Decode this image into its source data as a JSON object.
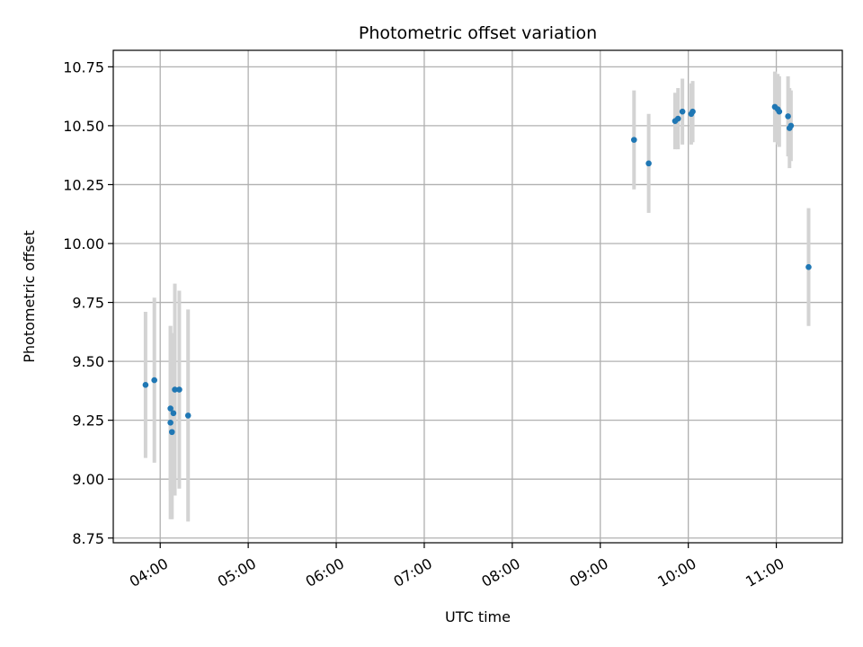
{
  "chart_data": {
    "type": "scatter",
    "title": "Photometric offset variation",
    "xlabel": "UTC time",
    "ylabel": "Photometric offset",
    "xlim": [
      "03:28",
      "11:45"
    ],
    "ylim": [
      8.73,
      10.82
    ],
    "x_ticks": [
      "04:00",
      "05:00",
      "06:00",
      "07:00",
      "08:00",
      "09:00",
      "10:00",
      "11:00"
    ],
    "y_ticks": [
      "8.75",
      "9.00",
      "9.25",
      "9.50",
      "9.75",
      "10.00",
      "10.25",
      "10.50",
      "10.75"
    ],
    "grid": true,
    "legend": "none",
    "point_color": "#1f77b4",
    "errorbar_color": "#d3d3d3",
    "points": [
      {
        "t": "03:50",
        "y": 9.4,
        "err": 0.31
      },
      {
        "t": "03:56",
        "y": 9.42,
        "err": 0.35
      },
      {
        "t": "04:07",
        "y": 9.3,
        "err": 0.35
      },
      {
        "t": "04:07",
        "y": 9.24,
        "err": 0.41
      },
      {
        "t": "04:08",
        "y": 9.2,
        "err": 0.37
      },
      {
        "t": "04:09",
        "y": 9.28,
        "err": 0.34
      },
      {
        "t": "04:10",
        "y": 9.38,
        "err": 0.45
      },
      {
        "t": "04:13",
        "y": 9.38,
        "err": 0.42
      },
      {
        "t": "04:19",
        "y": 9.27,
        "err": 0.45
      },
      {
        "t": "09:23",
        "y": 10.44,
        "err": 0.21
      },
      {
        "t": "09:33",
        "y": 10.34,
        "err": 0.21
      },
      {
        "t": "09:51",
        "y": 10.52,
        "err": 0.12
      },
      {
        "t": "09:53",
        "y": 10.53,
        "err": 0.13
      },
      {
        "t": "09:56",
        "y": 10.56,
        "err": 0.14
      },
      {
        "t": "10:02",
        "y": 10.55,
        "err": 0.13
      },
      {
        "t": "10:03",
        "y": 10.56,
        "err": 0.13
      },
      {
        "t": "10:59",
        "y": 10.58,
        "err": 0.15
      },
      {
        "t": "11:01",
        "y": 10.57,
        "err": 0.15
      },
      {
        "t": "11:02",
        "y": 10.56,
        "err": 0.15
      },
      {
        "t": "11:08",
        "y": 10.54,
        "err": 0.17
      },
      {
        "t": "11:09",
        "y": 10.49,
        "err": 0.17
      },
      {
        "t": "11:10",
        "y": 10.5,
        "err": 0.15
      },
      {
        "t": "11:22",
        "y": 9.9,
        "err": 0.25
      }
    ]
  }
}
